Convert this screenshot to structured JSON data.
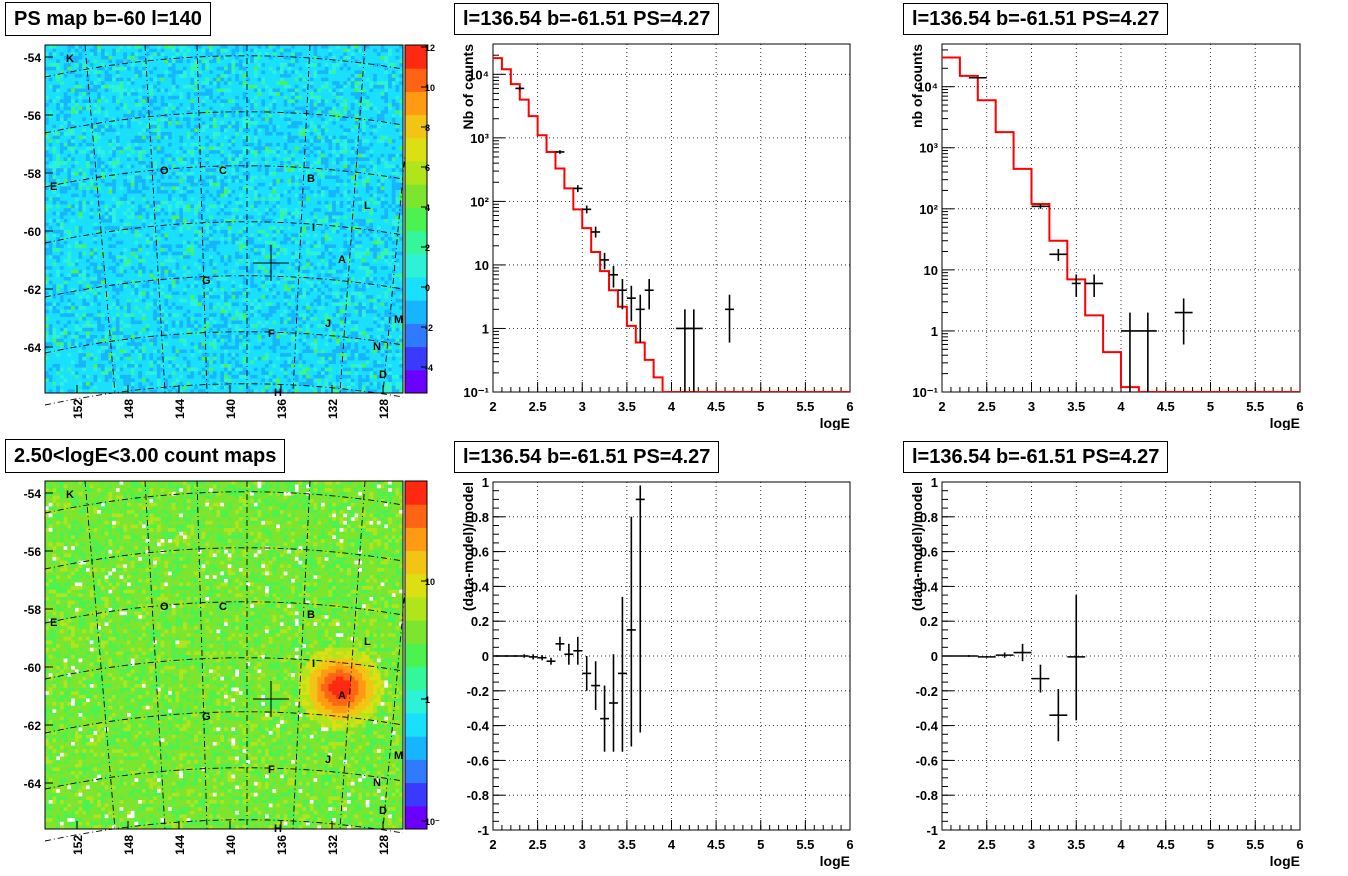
{
  "panels": {
    "map_top": {
      "title": "PS map b=-60 l=140",
      "xticks": [
        "152",
        "148",
        "144",
        "140",
        "136",
        "132",
        "128"
      ],
      "yticks": [
        "-54",
        "-56",
        "-58",
        "-60",
        "-62",
        "-64"
      ],
      "colorbar": [
        "12",
        "10",
        "8",
        "6",
        "4",
        "2",
        "0",
        "-2",
        "-4"
      ],
      "colorscale": [
        "#6a00ff",
        "#3a3aff",
        "#2e7bff",
        "#17b5ff",
        "#19e0ff",
        "#2ef2d8",
        "#34f79c",
        "#4cf24f",
        "#7de52e",
        "#b0e51c",
        "#dcdf12",
        "#f2c514",
        "#ff9a12",
        "#ff6414",
        "#ff2810"
      ]
    },
    "map_bottom": {
      "title": "2.50<logE<3.00 count maps",
      "xticks": [
        "152",
        "148",
        "144",
        "140",
        "136",
        "132",
        "128"
      ],
      "yticks": [
        "-54",
        "-56",
        "-58",
        "-60",
        "-62",
        "-64"
      ],
      "colorbar": [
        "10",
        "1",
        "10⁻¹"
      ],
      "colorscale": [
        "#6a00ff",
        "#3a3aff",
        "#2e7bff",
        "#17b5ff",
        "#19e0ff",
        "#2ef2d8",
        "#34f79c",
        "#4cf24f",
        "#7de52e",
        "#b0e51c",
        "#dcdf12",
        "#f2c514",
        "#ff9a12",
        "#ff6414",
        "#ff2810"
      ]
    },
    "map_sources": [
      "K",
      "O",
      "C",
      "E",
      "B",
      "L",
      "I",
      "A",
      "G",
      "F",
      "J",
      "M",
      "N",
      "D",
      "H"
    ]
  },
  "chart_data": [
    {
      "type": "line",
      "title": "l=136.54 b=-61.51 PS=4.27",
      "xlabel": "logE",
      "ylabel": "Nb of counts",
      "xlim": [
        2,
        6
      ],
      "ylim": [
        0.1,
        30000
      ],
      "yscale": "log",
      "xticks": [
        "2",
        "2.5",
        "3",
        "3.5",
        "4",
        "4.5",
        "5",
        "5.5",
        "6"
      ],
      "yticks": [
        {
          "v": 0.1,
          "label": "10⁻¹"
        },
        {
          "v": 1,
          "label": "1"
        },
        {
          "v": 10,
          "label": "10"
        },
        {
          "v": 100,
          "label": "10²"
        },
        {
          "v": 1000,
          "label": "10³"
        },
        {
          "v": 10000,
          "label": "10⁴"
        }
      ],
      "grid": true,
      "series": [
        {
          "values_kind": "model-step",
          "color": "#ff0000",
          "bins": [
            2.0,
            2.1,
            2.2,
            2.3,
            2.4,
            2.5,
            2.6,
            2.7,
            2.8,
            2.9,
            3.0,
            3.1,
            3.2,
            3.3,
            3.4,
            3.5,
            3.6,
            3.7,
            3.8,
            3.9,
            4.0,
            4.1,
            4.2,
            6.0
          ],
          "values": [
            18000,
            12000,
            7000,
            4000,
            2200,
            1100,
            600,
            330,
            160,
            75,
            38,
            16,
            8,
            4,
            2.2,
            1.1,
            0.6,
            0.32,
            0.17,
            0.1,
            0.1,
            0.1,
            0.1
          ]
        },
        {
          "values_kind": "data-points",
          "color": "#000000",
          "points": [
            {
              "x": 2.3,
              "y": 6000,
              "xe": 0.05,
              "lo": 5600,
              "hi": 6400
            },
            {
              "x": 2.75,
              "y": 600,
              "xe": 0.05,
              "lo": 560,
              "hi": 640
            },
            {
              "x": 2.95,
              "y": 160,
              "xe": 0.05,
              "lo": 140,
              "hi": 180
            },
            {
              "x": 3.05,
              "y": 75,
              "xe": 0.05,
              "lo": 65,
              "hi": 86
            },
            {
              "x": 3.15,
              "y": 33,
              "xe": 0.05,
              "lo": 27,
              "hi": 40
            },
            {
              "x": 3.25,
              "y": 12,
              "xe": 0.05,
              "lo": 8.5,
              "hi": 15.5
            },
            {
              "x": 3.35,
              "y": 7,
              "xe": 0.05,
              "lo": 4.4,
              "hi": 9.6
            },
            {
              "x": 3.45,
              "y": 4,
              "xe": 0.05,
              "lo": 2,
              "hi": 6
            },
            {
              "x": 3.55,
              "y": 3,
              "xe": 0.05,
              "lo": 1.3,
              "hi": 4.7
            },
            {
              "x": 3.65,
              "y": 2,
              "xe": 0.05,
              "lo": 0.6,
              "hi": 3.4
            },
            {
              "x": 3.75,
              "y": 4,
              "xe": 0.05,
              "lo": 2,
              "hi": 6
            },
            {
              "x": 4.15,
              "y": 1,
              "xe": 0.1,
              "lo": 0.1,
              "hi": 2
            },
            {
              "x": 4.25,
              "y": 1,
              "xe": 0.1,
              "lo": 0.1,
              "hi": 2
            },
            {
              "x": 4.65,
              "y": 2,
              "xe": 0.05,
              "lo": 0.6,
              "hi": 3.4
            }
          ]
        }
      ]
    },
    {
      "type": "line",
      "title": "l=136.54 b=-61.51 PS=4.27",
      "xlabel": "logE",
      "ylabel": "nb of counts",
      "xlim": [
        2,
        6
      ],
      "ylim": [
        0.1,
        50000
      ],
      "yscale": "log",
      "xticks": [
        "2",
        "2.5",
        "3",
        "3.5",
        "4",
        "4.5",
        "5",
        "5.5",
        "6"
      ],
      "yticks": [
        {
          "v": 0.1,
          "label": "10⁻¹"
        },
        {
          "v": 1,
          "label": "1"
        },
        {
          "v": 10,
          "label": "10"
        },
        {
          "v": 100,
          "label": "10²"
        },
        {
          "v": 1000,
          "label": "10³"
        },
        {
          "v": 10000,
          "label": "10⁴"
        }
      ],
      "grid": true,
      "series": [
        {
          "values_kind": "model-step",
          "color": "#ff0000",
          "bins": [
            2.0,
            2.2,
            2.4,
            2.6,
            2.8,
            3.0,
            3.2,
            3.4,
            3.6,
            3.8,
            4.0,
            4.2,
            6.0
          ],
          "values": [
            30000,
            15000,
            6000,
            1800,
            450,
            120,
            30,
            7,
            1.8,
            0.45,
            0.12,
            0.1
          ]
        },
        {
          "values_kind": "data-points",
          "color": "#000000",
          "points": [
            {
              "x": 2.4,
              "y": 14000,
              "xe": 0.1,
              "lo": 13500,
              "hi": 14500
            },
            {
              "x": 3.1,
              "y": 110,
              "xe": 0.1,
              "lo": 100,
              "hi": 120
            },
            {
              "x": 3.3,
              "y": 18,
              "xe": 0.1,
              "lo": 14,
              "hi": 22
            },
            {
              "x": 3.5,
              "y": 6,
              "xe": 0.05,
              "lo": 3.6,
              "hi": 8.4
            },
            {
              "x": 3.7,
              "y": 6,
              "xe": 0.1,
              "lo": 3.6,
              "hi": 8.4
            },
            {
              "x": 4.1,
              "y": 1,
              "xe": 0.1,
              "lo": 0.1,
              "hi": 2
            },
            {
              "x": 4.3,
              "y": 1,
              "xe": 0.1,
              "lo": 0.1,
              "hi": 2
            },
            {
              "x": 4.7,
              "y": 2,
              "xe": 0.1,
              "lo": 0.6,
              "hi": 3.4
            }
          ]
        }
      ]
    },
    {
      "type": "scatter",
      "title": "l=136.54 b=-61.51 PS=4.27",
      "xlabel": "logE",
      "ylabel": "(data-model)/model",
      "xlim": [
        2,
        6
      ],
      "ylim": [
        -1,
        1
      ],
      "xticks": [
        "2",
        "2.5",
        "3",
        "3.5",
        "4",
        "4.5",
        "5",
        "5.5",
        "6"
      ],
      "yticks": [
        "1",
        "0.8",
        "0.6",
        "0.4",
        "0.2",
        "0",
        "-0.2",
        "-0.4",
        "-0.6",
        "-0.8",
        "-1"
      ],
      "grid": true,
      "series": [
        {
          "color": "#000000",
          "points": [
            {
              "x": 2.05,
              "y": 0,
              "xe": 0.05,
              "lo": -0.005,
              "hi": 0.005
            },
            {
              "x": 2.15,
              "y": 0,
              "xe": 0.05,
              "lo": -0.005,
              "hi": 0.005
            },
            {
              "x": 2.25,
              "y": 0,
              "xe": 0.05,
              "lo": -0.005,
              "hi": 0.005
            },
            {
              "x": 2.35,
              "y": 0,
              "xe": 0.05,
              "lo": -0.01,
              "hi": 0.01
            },
            {
              "x": 2.45,
              "y": -0.005,
              "xe": 0.05,
              "lo": -0.02,
              "hi": 0.01
            },
            {
              "x": 2.55,
              "y": -0.01,
              "xe": 0.05,
              "lo": -0.025,
              "hi": 0.005
            },
            {
              "x": 2.65,
              "y": -0.03,
              "xe": 0.05,
              "lo": -0.05,
              "hi": -0.01
            },
            {
              "x": 2.75,
              "y": 0.07,
              "xe": 0.05,
              "lo": 0.03,
              "hi": 0.11
            },
            {
              "x": 2.85,
              "y": 0.01,
              "xe": 0.05,
              "lo": -0.05,
              "hi": 0.07
            },
            {
              "x": 2.95,
              "y": 0.03,
              "xe": 0.05,
              "lo": -0.05,
              "hi": 0.11
            },
            {
              "x": 3.05,
              "y": -0.1,
              "xe": 0.05,
              "lo": -0.2,
              "hi": 0
            },
            {
              "x": 3.15,
              "y": -0.17,
              "xe": 0.05,
              "lo": -0.31,
              "hi": -0.03
            },
            {
              "x": 3.25,
              "y": -0.36,
              "xe": 0.05,
              "lo": -0.55,
              "hi": -0.17
            },
            {
              "x": 3.35,
              "y": -0.27,
              "xe": 0.05,
              "lo": -0.55,
              "hi": 0.01
            },
            {
              "x": 3.45,
              "y": -0.1,
              "xe": 0.05,
              "lo": -0.55,
              "hi": 0.34
            },
            {
              "x": 3.55,
              "y": 0.15,
              "xe": 0.05,
              "lo": -0.52,
              "hi": 0.8
            },
            {
              "x": 3.65,
              "y": 0.9,
              "xe": 0.05,
              "lo": -0.44,
              "hi": 0.98
            }
          ]
        }
      ]
    },
    {
      "type": "scatter",
      "title": "l=136.54 b=-61.51 PS=4.27",
      "xlabel": "logE",
      "ylabel": "(data-model)/model",
      "xlim": [
        2,
        6
      ],
      "ylim": [
        -1,
        1
      ],
      "xticks": [
        "2",
        "2.5",
        "3",
        "3.5",
        "4",
        "4.5",
        "5",
        "5.5",
        "6"
      ],
      "yticks": [
        "1",
        "0.8",
        "0.6",
        "0.4",
        "0.2",
        "0",
        "-0.2",
        "-0.4",
        "-0.6",
        "-0.8",
        "-1"
      ],
      "grid": true,
      "series": [
        {
          "color": "#000000",
          "points": [
            {
              "x": 2.1,
              "y": 0,
              "xe": 0.1,
              "lo": -0.003,
              "hi": 0.003
            },
            {
              "x": 2.3,
              "y": 0,
              "xe": 0.1,
              "lo": -0.005,
              "hi": 0.005
            },
            {
              "x": 2.5,
              "y": -0.005,
              "xe": 0.1,
              "lo": -0.01,
              "hi": 0
            },
            {
              "x": 2.7,
              "y": 0.005,
              "xe": 0.1,
              "lo": -0.01,
              "hi": 0.02
            },
            {
              "x": 2.9,
              "y": 0.02,
              "xe": 0.1,
              "lo": -0.03,
              "hi": 0.07
            },
            {
              "x": 3.1,
              "y": -0.13,
              "xe": 0.1,
              "lo": -0.21,
              "hi": -0.05
            },
            {
              "x": 3.3,
              "y": -0.34,
              "xe": 0.1,
              "lo": -0.49,
              "hi": -0.19
            },
            {
              "x": 3.5,
              "y": -0.005,
              "xe": 0.1,
              "lo": -0.37,
              "hi": 0.35
            }
          ]
        }
      ]
    }
  ]
}
